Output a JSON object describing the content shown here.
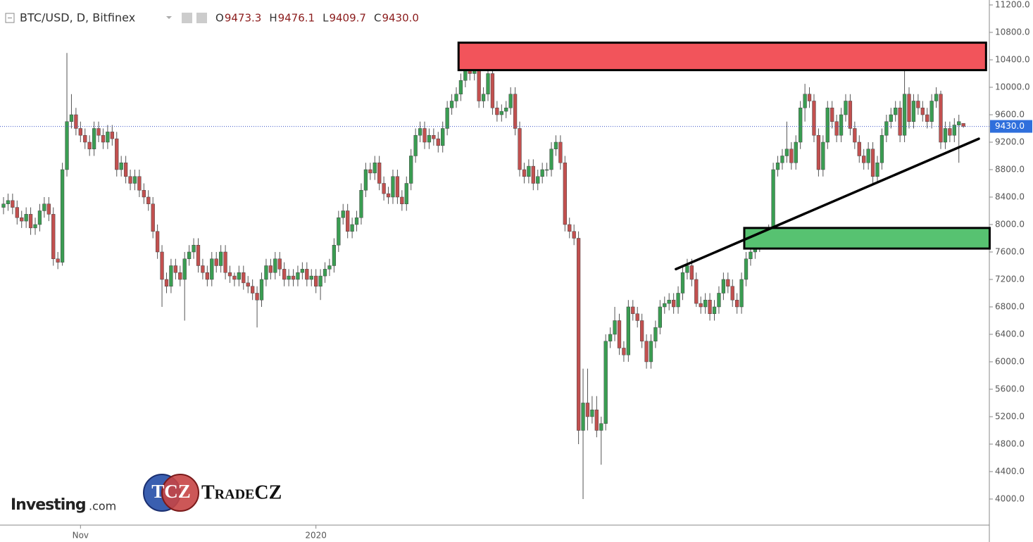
{
  "chart_data": {
    "type": "candlestick",
    "header": {
      "symbol": "BTC/USD, D, Bitfinex",
      "fields": [
        {
          "key": "O",
          "text": "9473.3"
        },
        {
          "key": "H",
          "text": "9476.1"
        },
        {
          "key": "L",
          "text": "9409.7"
        },
        {
          "key": "C",
          "text": "9430.0"
        }
      ]
    },
    "up_color": "#3a9d52",
    "down_color": "#c2504f",
    "open": [
      8250,
      8300,
      8350,
      8250,
      8100,
      8050,
      8150,
      7950,
      8000,
      8200,
      8300,
      8150,
      7500,
      7450,
      8800,
      9500,
      9600,
      9400,
      9300,
      9200,
      9100,
      9400,
      9300,
      9200,
      9350,
      9250,
      8800,
      8900,
      8700,
      8600,
      8700,
      8500,
      8400,
      8300,
      7900,
      7600,
      7200,
      7100,
      7400,
      7300,
      7200,
      7500,
      7600,
      7700,
      7400,
      7300,
      7200,
      7500,
      7400,
      7600,
      7300,
      7250,
      7200,
      7300,
      7150,
      7100,
      7000,
      6900,
      7200,
      7400,
      7300,
      7500,
      7350,
      7200,
      7250,
      7200,
      7300,
      7350,
      7200,
      7250,
      7100,
      7250,
      7350,
      7400,
      7700,
      8100,
      8200,
      7900,
      8000,
      8100,
      8500,
      8800,
      8750,
      8900,
      8600,
      8450,
      8400,
      8700,
      8400,
      8300,
      8600,
      9000,
      9300,
      9400,
      9200,
      9300,
      9250,
      9150,
      9400,
      9700,
      9800,
      9900,
      10100,
      10300,
      10200,
      10300,
      9800,
      9900,
      10200,
      9700,
      9600,
      9650,
      9700,
      9900,
      9400,
      8800,
      8700,
      8850,
      8600,
      8700,
      8800,
      8800,
      9100,
      9200,
      8900,
      8000,
      7900,
      7800,
      5000,
      5400,
      5200,
      5300,
      5000,
      5100,
      6300,
      6400,
      6600,
      6200,
      6100,
      6800,
      6700,
      6600,
      6300,
      6000,
      6300,
      6500,
      6800,
      6850,
      6900,
      6800,
      7000,
      7300,
      7400,
      7200,
      6850,
      6800,
      6900,
      6700,
      6800,
      7000,
      7200,
      7100,
      6900,
      6800,
      7200,
      7500,
      7600,
      7700,
      7800,
      7800,
      7900,
      8800,
      8900,
      9000,
      9100,
      8900,
      9200,
      9700,
      9900,
      9800,
      9300,
      8800,
      9200,
      9700,
      9500,
      9300,
      9600,
      9800,
      9400,
      9200,
      9000,
      8900,
      9100,
      8700,
      8900,
      9300,
      9500,
      9600,
      9700,
      9300,
      9900,
      9500,
      9800,
      9700,
      9600,
      9500,
      9800,
      9900,
      9200,
      9400,
      9300,
      9450,
      9473.3
    ],
    "high": [
      8400,
      8450,
      8450,
      8350,
      8200,
      8250,
      8250,
      8100,
      8300,
      8400,
      8400,
      8250,
      7600,
      8900,
      10500,
      9900,
      9700,
      9500,
      9400,
      9300,
      9500,
      9500,
      9400,
      9450,
      9450,
      9350,
      9000,
      9000,
      8800,
      8800,
      8800,
      8600,
      8500,
      8400,
      8000,
      7700,
      7300,
      7500,
      7500,
      7400,
      7600,
      7700,
      7800,
      7800,
      7500,
      7400,
      7600,
      7600,
      7700,
      7700,
      7400,
      7300,
      7400,
      7400,
      7250,
      7200,
      7100,
      7300,
      7500,
      7500,
      7600,
      7600,
      7450,
      7350,
      7350,
      7400,
      7450,
      7450,
      7350,
      7350,
      7350,
      7450,
      7500,
      7800,
      8200,
      8300,
      8300,
      8100,
      8200,
      8600,
      8900,
      8900,
      9000,
      9000,
      8700,
      8550,
      8800,
      8800,
      8500,
      8700,
      9100,
      9400,
      9500,
      9500,
      9400,
      9400,
      9350,
      9500,
      9800,
      9900,
      10000,
      10200,
      10500,
      10400,
      10400,
      10400,
      10000,
      10300,
      10300,
      9800,
      9750,
      9800,
      10000,
      10000,
      9500,
      8900,
      8950,
      8950,
      8800,
      8900,
      8900,
      9200,
      9300,
      9300,
      9000,
      8100,
      8000,
      7900,
      5900,
      5900,
      5500,
      5500,
      5200,
      6400,
      6500,
      6800,
      6700,
      6300,
      6900,
      6900,
      6800,
      6700,
      6400,
      6400,
      6600,
      6900,
      6950,
      7000,
      7000,
      7100,
      7400,
      7500,
      7500,
      7300,
      6950,
      7000,
      7000,
      6900,
      7100,
      7300,
      7300,
      7200,
      7000,
      7300,
      7600,
      7700,
      7800,
      7900,
      7900,
      8000,
      8900,
      9000,
      9100,
      9500,
      9200,
      9300,
      9800,
      10050,
      10000,
      9900,
      9400,
      9300,
      9800,
      9800,
      9600,
      9700,
      9900,
      9900,
      9500,
      9300,
      9100,
      9200,
      9200,
      9000,
      9400,
      9600,
      9700,
      9800,
      9800,
      10400,
      10000,
      9900,
      9900,
      9800,
      9700,
      9900,
      10000,
      9950,
      9500,
      9500,
      9550,
      9600,
      9476.1
    ],
    "low": [
      8150,
      8200,
      8150,
      8000,
      7950,
      7950,
      7850,
      7850,
      7900,
      8100,
      8050,
      7400,
      7350,
      7400,
      8700,
      9400,
      9300,
      9200,
      9100,
      9000,
      9000,
      9200,
      9100,
      9100,
      9150,
      8700,
      8700,
      8600,
      8500,
      8500,
      8400,
      8300,
      8200,
      7800,
      7500,
      6800,
      7000,
      7000,
      7200,
      7100,
      6600,
      7400,
      7500,
      7300,
      7200,
      7100,
      7100,
      7300,
      7300,
      7200,
      7150,
      7100,
      7100,
      7050,
      7000,
      6900,
      6500,
      6800,
      7100,
      7200,
      7200,
      7250,
      7100,
      7100,
      7100,
      7100,
      7200,
      7100,
      7100,
      7000,
      6900,
      7150,
      7250,
      7300,
      7600,
      8000,
      7800,
      7800,
      7900,
      8000,
      8400,
      8650,
      8650,
      8500,
      8350,
      8300,
      8300,
      8300,
      8200,
      8200,
      8500,
      8900,
      9200,
      9100,
      9100,
      9150,
      9050,
      9050,
      9300,
      9600,
      9700,
      9800,
      10000,
      10100,
      10100,
      9700,
      9700,
      9800,
      9600,
      9500,
      9500,
      9550,
      9600,
      9300,
      8700,
      8600,
      8600,
      8500,
      8500,
      8600,
      8700,
      8700,
      9000,
      8800,
      7900,
      7800,
      7700,
      4800,
      4000,
      5000,
      5100,
      4900,
      4500,
      5000,
      6200,
      6300,
      6100,
      6000,
      6000,
      6600,
      6500,
      6200,
      5900,
      5900,
      6200,
      6400,
      6700,
      6750,
      6700,
      6700,
      6900,
      7200,
      7100,
      6800,
      6700,
      6700,
      6600,
      6600,
      6700,
      6900,
      7000,
      6800,
      6700,
      6700,
      7100,
      7400,
      7500,
      7600,
      7700,
      7700,
      7800,
      8700,
      8800,
      8900,
      8800,
      8800,
      9100,
      9500,
      9700,
      9200,
      8700,
      8700,
      9100,
      9400,
      9200,
      9200,
      9500,
      9300,
      9100,
      8900,
      8800,
      8800,
      8600,
      8600,
      8800,
      9200,
      9400,
      9500,
      9200,
      9200,
      9400,
      9400,
      9600,
      9500,
      9400,
      9400,
      9700,
      9100,
      9100,
      9200,
      9200,
      8900,
      9409.7
    ],
    "close": [
      8300,
      8350,
      8250,
      8100,
      8050,
      8150,
      7950,
      8000,
      8200,
      8300,
      8150,
      7500,
      7450,
      8800,
      9500,
      9600,
      9400,
      9300,
      9200,
      9100,
      9400,
      9300,
      9200,
      9350,
      9250,
      8800,
      8900,
      8700,
      8600,
      8700,
      8500,
      8400,
      8300,
      7900,
      7600,
      7200,
      7100,
      7400,
      7300,
      7200,
      7500,
      7600,
      7700,
      7400,
      7300,
      7200,
      7500,
      7400,
      7600,
      7300,
      7250,
      7200,
      7300,
      7150,
      7100,
      7000,
      6900,
      7200,
      7400,
      7300,
      7500,
      7350,
      7200,
      7250,
      7200,
      7300,
      7350,
      7200,
      7250,
      7100,
      7250,
      7350,
      7400,
      7700,
      8100,
      8200,
      7900,
      8000,
      8100,
      8500,
      8800,
      8750,
      8900,
      8600,
      8450,
      8400,
      8700,
      8400,
      8300,
      8600,
      9000,
      9300,
      9400,
      9200,
      9300,
      9250,
      9150,
      9400,
      9700,
      9800,
      9900,
      10100,
      10300,
      10200,
      10300,
      9800,
      9900,
      10200,
      9700,
      9600,
      9650,
      9700,
      9900,
      9400,
      8800,
      8700,
      8850,
      8600,
      8700,
      8800,
      8800,
      9100,
      9200,
      8900,
      8000,
      7900,
      7800,
      5000,
      5400,
      5200,
      5300,
      5000,
      5100,
      6300,
      6400,
      6600,
      6200,
      6100,
      6800,
      6700,
      6600,
      6300,
      6000,
      6300,
      6500,
      6800,
      6850,
      6900,
      6800,
      7000,
      7300,
      7400,
      7200,
      6850,
      6800,
      6900,
      6700,
      6800,
      7000,
      7200,
      7100,
      6900,
      6800,
      7200,
      7500,
      7600,
      7700,
      7800,
      7800,
      7900,
      8800,
      8900,
      9000,
      9100,
      8900,
      9200,
      9700,
      9900,
      9800,
      9300,
      8800,
      9200,
      9700,
      9500,
      9300,
      9600,
      9800,
      9400,
      9200,
      9000,
      8900,
      9100,
      8700,
      8900,
      9300,
      9500,
      9600,
      9700,
      9300,
      9900,
      9500,
      9800,
      9700,
      9600,
      9500,
      9800,
      9900,
      9200,
      9400,
      9300,
      9450,
      9500,
      9430
    ],
    "last_price": {
      "value": 9430,
      "label": "9430.0"
    },
    "xticks": [
      {
        "value": 17,
        "label": "Nov"
      },
      {
        "value": 69,
        "label": "2020"
      }
    ],
    "ylim": [
      3620,
      11200
    ],
    "yticks": [
      {
        "value": 4000,
        "label": "4000.0"
      },
      {
        "value": 4400,
        "label": "4400.0"
      },
      {
        "value": 4800,
        "label": "4800.0"
      },
      {
        "value": 5200,
        "label": "5200.0"
      },
      {
        "value": 5600,
        "label": "5600.0"
      },
      {
        "value": 6000,
        "label": "6000.0"
      },
      {
        "value": 6400,
        "label": "6400.0"
      },
      {
        "value": 6800,
        "label": "6800.0"
      },
      {
        "value": 7200,
        "label": "7200.0"
      },
      {
        "value": 7600,
        "label": "7600.0"
      },
      {
        "value": 8000,
        "label": "8000.0"
      },
      {
        "value": 8400,
        "label": "8400.0"
      },
      {
        "value": 8800,
        "label": "8800.0"
      },
      {
        "value": 9200,
        "label": "9200.0"
      },
      {
        "value": 9600,
        "label": "9600.0"
      },
      {
        "value": 10000,
        "label": "10000.0"
      },
      {
        "value": 10400,
        "label": "10400.0"
      },
      {
        "value": 10800,
        "label": "10800.0"
      },
      {
        "value": 11200,
        "label": "11200.0"
      }
    ],
    "zones": [
      {
        "x": [
          100.5,
          217
        ],
        "y": [
          10250,
          10650
        ],
        "color": "#f2545b"
      },
      {
        "x": [
          163.6,
          217.8
        ],
        "y": [
          7650,
          7950
        ],
        "color": "#57c271"
      }
    ],
    "trendline": {
      "x": [
        148.5,
        215.4
      ],
      "y": [
        7350,
        9250
      ]
    },
    "watermarks": {
      "left": "Investing",
      "left_suffix": ".com",
      "badge": "TCZ",
      "brand": "TradeCZ"
    }
  }
}
